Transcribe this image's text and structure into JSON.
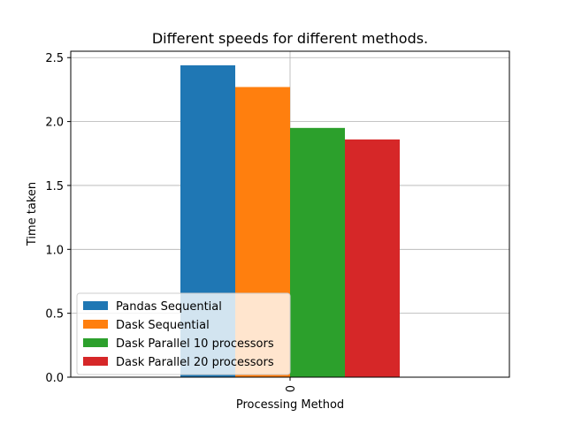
{
  "chart_data": {
    "type": "bar",
    "title": "Different speeds for different methods.",
    "xlabel": "Processing Method",
    "ylabel": "Time taken",
    "categories": [
      "0"
    ],
    "ylim": [
      0,
      2.55
    ],
    "yticks": [
      "0.0",
      "0.5",
      "1.0",
      "1.5",
      "2.0",
      "2.5"
    ],
    "grid": true,
    "legend_position": "lower-left",
    "series": [
      {
        "name": "Pandas Sequential",
        "values": [
          2.44
        ],
        "color": "#1f77b4"
      },
      {
        "name": "Dask Sequential",
        "values": [
          2.27
        ],
        "color": "#ff7f0e"
      },
      {
        "name": "Dask Parallel 10 processors",
        "values": [
          1.95
        ],
        "color": "#2ca02c"
      },
      {
        "name": "Dask Parallel 20 processors",
        "values": [
          1.86
        ],
        "color": "#d62728"
      }
    ]
  }
}
